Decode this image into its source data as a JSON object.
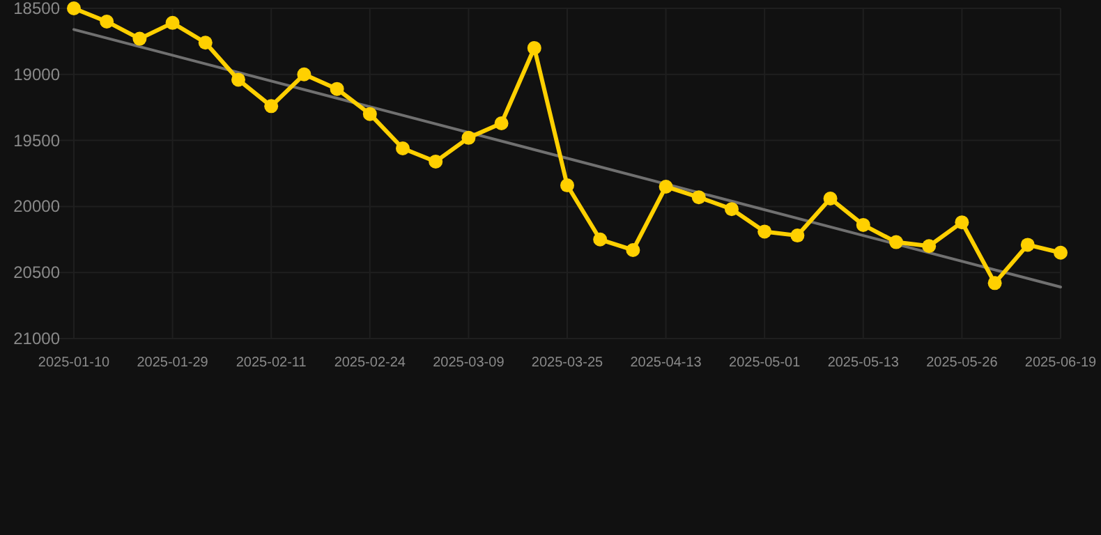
{
  "chart_data": {
    "type": "line",
    "categories": [
      "2025-01-10",
      null,
      null,
      "2025-01-29",
      null,
      null,
      "2025-02-11",
      null,
      null,
      "2025-02-24",
      null,
      null,
      "2025-03-09",
      null,
      null,
      "2025-03-25",
      null,
      null,
      "2025-04-13",
      null,
      null,
      "2025-05-01",
      null,
      null,
      "2025-05-13",
      null,
      null,
      "2025-05-26",
      null,
      null,
      "2025-06-19"
    ],
    "series": [
      {
        "color": "#ffd000",
        "marker": "circle",
        "values": [
          18500,
          18600,
          18730,
          18610,
          18760,
          19040,
          19240,
          19000,
          19110,
          19300,
          19560,
          19660,
          19480,
          19370,
          18800,
          19840,
          20250,
          20330,
          19850,
          19930,
          20020,
          20190,
          20220,
          19940,
          20140,
          20270,
          20300,
          20120,
          20580,
          20290,
          20350
        ]
      },
      {
        "type": "line",
        "color": "#707070",
        "marker": "none",
        "values": [
          18660,
          null,
          null,
          null,
          null,
          null,
          null,
          null,
          null,
          null,
          null,
          null,
          null,
          null,
          null,
          null,
          null,
          null,
          null,
          null,
          null,
          null,
          null,
          null,
          null,
          null,
          null,
          null,
          null,
          null,
          20610
        ]
      }
    ],
    "ylim": [
      21000,
      18500
    ],
    "yticks": [
      18500,
      19000,
      19500,
      20000,
      20500,
      21000
    ],
    "grid": true
  }
}
